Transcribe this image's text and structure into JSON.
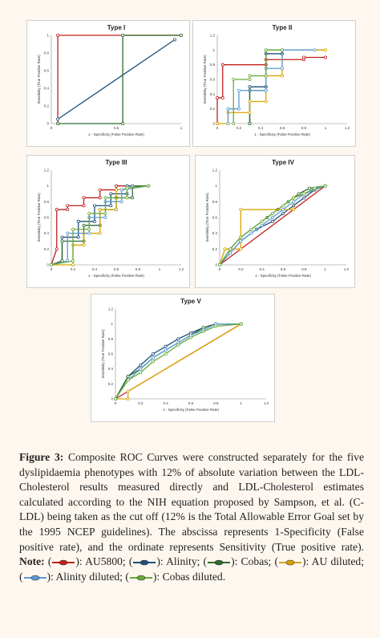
{
  "colors": {
    "AU5800": "#c0201b",
    "Alinity": "#1f4e79",
    "Cobas": "#2e6b2e",
    "AU_diluted": "#d8a400",
    "Alinity_diluted": "#5a9bd5",
    "Cobas_diluted": "#6aaa3a",
    "reference": "#2f5597"
  },
  "chart_data": [
    {
      "type": "line",
      "title": "Type I",
      "xlabel": "1 - Specificity (False Positive Rate)",
      "ylabel": "Sensitivity (True Positive Rate)",
      "xlim": [
        0,
        1
      ],
      "ylim": [
        0,
        1
      ],
      "xticks": [
        "0",
        "0.5",
        "1"
      ],
      "yticks": [
        "0",
        "0.2",
        "0.4",
        "0.6",
        "0.8",
        "1"
      ],
      "series": [
        {
          "key": "AU5800",
          "x": [
            0.05,
            0.05,
            1
          ],
          "y": [
            0,
            1,
            1
          ]
        },
        {
          "key": "Alinity",
          "x": [
            0.05,
            0.95
          ],
          "y": [
            0.05,
            0.95
          ]
        },
        {
          "key": "Cobas",
          "x": [
            0.05,
            0.55,
            0.55,
            1
          ],
          "y": [
            0,
            0,
            1,
            1
          ]
        }
      ]
    },
    {
      "type": "line",
      "title": "Type II",
      "xlabel": "1 - Specificity (False Positive Rate)",
      "ylabel": "Sensitivity (True Positive Rate)",
      "xlim": [
        0,
        1.2
      ],
      "ylim": [
        0,
        1.2
      ],
      "xticks": [
        "0",
        "0.2",
        "0.4",
        "0.6",
        "0.8",
        "1",
        "1.2"
      ],
      "yticks": [
        "0",
        "0.2",
        "0.4",
        "0.6",
        "0.8",
        "1",
        "1.2"
      ],
      "series": [
        {
          "key": "AU5800",
          "x": [
            0,
            0,
            0.05,
            0.05,
            0.45,
            0.45,
            0.8,
            0.8,
            1
          ],
          "y": [
            0,
            0.35,
            0.35,
            0.8,
            0.8,
            0.87,
            0.87,
            0.9,
            0.9
          ]
        },
        {
          "key": "Alinity",
          "x": [
            0.3,
            0.3,
            0.45,
            0.45,
            0.6,
            0.6
          ],
          "y": [
            0,
            0.5,
            0.5,
            0.95,
            0.95,
            1
          ]
        },
        {
          "key": "Cobas",
          "x": [
            0.3,
            0.3,
            0.45,
            0.45,
            0.6
          ],
          "y": [
            0,
            0.45,
            0.45,
            1,
            1
          ]
        },
        {
          "key": "AU_diluted",
          "x": [
            0,
            0.1,
            0.1,
            0.3,
            0.3,
            0.45,
            0.45,
            0.6,
            0.6,
            1
          ],
          "y": [
            0,
            0,
            0.15,
            0.15,
            0.3,
            0.3,
            0.65,
            0.65,
            1,
            1
          ]
        },
        {
          "key": "Alinity_diluted",
          "x": [
            0.1,
            0.1,
            0.2,
            0.2,
            0.45,
            0.45,
            0.6,
            0.6,
            0.9
          ],
          "y": [
            0,
            0.2,
            0.2,
            0.45,
            0.45,
            0.75,
            0.75,
            1,
            1
          ]
        },
        {
          "key": "Cobas_diluted",
          "x": [
            0.15,
            0.15,
            0.3,
            0.3,
            0.45,
            0.45,
            0.6
          ],
          "y": [
            0,
            0.6,
            0.6,
            0.65,
            0.65,
            1,
            1
          ]
        }
      ]
    },
    {
      "type": "line",
      "title": "Type III",
      "xlabel": "1 - Specificity (False Positive Rate)",
      "ylabel": "Sensitivity (True Positive Rate)",
      "xlim": [
        0,
        1.2
      ],
      "ylim": [
        0,
        1.2
      ],
      "xticks": [
        "0",
        "0.2",
        "0.4",
        "0.6",
        "0.8",
        "1",
        "1.2"
      ],
      "yticks": [
        "0",
        "0.2",
        "0.4",
        "0.6",
        "0.8",
        "1",
        "1.2"
      ],
      "series": [
        {
          "key": "AU5800",
          "x": [
            0,
            0.05,
            0.05,
            0.15,
            0.15,
            0.3,
            0.3,
            0.45,
            0.45,
            0.6,
            0.6,
            0.9
          ],
          "y": [
            0,
            0.2,
            0.7,
            0.7,
            0.75,
            0.75,
            0.85,
            0.85,
            0.95,
            0.95,
            1,
            1
          ]
        },
        {
          "key": "Alinity",
          "x": [
            0,
            0.1,
            0.1,
            0.25,
            0.25,
            0.4,
            0.4,
            0.55,
            0.55,
            0.7,
            0.7,
            0.9
          ],
          "y": [
            0,
            0.05,
            0.35,
            0.35,
            0.55,
            0.55,
            0.75,
            0.75,
            0.9,
            0.9,
            1,
            1
          ]
        },
        {
          "key": "Cobas",
          "x": [
            0,
            0.1,
            0.1,
            0.3,
            0.3,
            0.45,
            0.45,
            0.6,
            0.6,
            0.75,
            0.75,
            0.9
          ],
          "y": [
            0,
            0.05,
            0.3,
            0.3,
            0.5,
            0.5,
            0.7,
            0.7,
            0.85,
            0.85,
            1,
            1
          ]
        },
        {
          "key": "AU_diluted",
          "x": [
            0,
            0.2,
            0.2,
            0.3,
            0.3,
            0.45,
            0.45,
            0.6,
            0.6,
            0.9
          ],
          "y": [
            0,
            0,
            0.25,
            0.25,
            0.4,
            0.4,
            0.7,
            0.7,
            0.95,
            1
          ]
        },
        {
          "key": "Alinity_diluted",
          "x": [
            0,
            0.15,
            0.15,
            0.35,
            0.35,
            0.5,
            0.5,
            0.65,
            0.65,
            0.9
          ],
          "y": [
            0,
            0.05,
            0.4,
            0.4,
            0.6,
            0.6,
            0.8,
            0.8,
            0.95,
            1
          ]
        },
        {
          "key": "Cobas_diluted",
          "x": [
            0,
            0.2,
            0.2,
            0.35,
            0.35,
            0.5,
            0.5,
            0.7,
            0.7,
            0.9
          ],
          "y": [
            0,
            0.05,
            0.45,
            0.45,
            0.65,
            0.65,
            0.85,
            0.85,
            0.97,
            1
          ]
        }
      ]
    },
    {
      "type": "line",
      "title": "Type IV",
      "xlabel": "1 - Specificity (False Positive Rate)",
      "ylabel": "Sensitivity (True Positive Rate)",
      "xlim": [
        0,
        1.2
      ],
      "ylim": [
        0,
        1.2
      ],
      "xticks": [
        "0",
        "0.2",
        "0.4",
        "0.6",
        "0.8",
        "1",
        "1.2"
      ],
      "yticks": [
        "0",
        "0.2",
        "0.4",
        "0.6",
        "0.8",
        "1",
        "1.2"
      ],
      "series": [
        {
          "key": "AU5800",
          "x": [
            0,
            1
          ],
          "y": [
            0,
            1
          ]
        },
        {
          "key": "Alinity",
          "x": [
            0,
            0.1,
            0.2,
            0.35,
            0.5,
            0.6,
            0.7,
            0.8,
            0.9,
            1
          ],
          "y": [
            0,
            0.15,
            0.3,
            0.45,
            0.55,
            0.65,
            0.75,
            0.85,
            0.95,
            1
          ]
        },
        {
          "key": "Cobas",
          "x": [
            0,
            0.1,
            0.2,
            0.3,
            0.45,
            0.55,
            0.65,
            0.75,
            0.85,
            1
          ],
          "y": [
            0,
            0.2,
            0.35,
            0.45,
            0.6,
            0.7,
            0.8,
            0.9,
            0.97,
            1
          ]
        },
        {
          "key": "AU_diluted",
          "x": [
            0,
            0.05,
            0.05,
            0.2,
            0.2,
            0.7,
            0.7,
            1
          ],
          "y": [
            0,
            0.2,
            0.2,
            0.2,
            0.7,
            0.7,
            0.85,
            1
          ]
        },
        {
          "key": "Alinity_diluted",
          "x": [
            0,
            0.1,
            0.2,
            0.3,
            0.4,
            0.5,
            0.6,
            0.7,
            0.8,
            1
          ],
          "y": [
            0,
            0.15,
            0.3,
            0.4,
            0.5,
            0.6,
            0.7,
            0.8,
            0.9,
            1
          ]
        },
        {
          "key": "Cobas_diluted",
          "x": [
            0,
            0.1,
            0.2,
            0.3,
            0.4,
            0.5,
            0.6,
            0.7,
            0.8,
            0.9,
            1
          ],
          "y": [
            0,
            0.2,
            0.35,
            0.45,
            0.55,
            0.65,
            0.75,
            0.85,
            0.9,
            0.97,
            1
          ]
        }
      ]
    },
    {
      "type": "line",
      "title": "Type V",
      "xlabel": "1 - Specificity (False Positive Rate)",
      "ylabel": "Sensitivity (True Positive Rate)",
      "xlim": [
        0,
        1.2
      ],
      "ylim": [
        0,
        1.2
      ],
      "xticks": [
        "0",
        "0.2",
        "0.4",
        "0.6",
        "0.8",
        "1",
        "1.2"
      ],
      "yticks": [
        "0",
        "0.2",
        "0.4",
        "0.6",
        "0.8",
        "1",
        "1.2"
      ],
      "series": [
        {
          "key": "AU5800",
          "x": [
            0,
            1
          ],
          "y": [
            0,
            1
          ]
        },
        {
          "key": "Alinity",
          "x": [
            0,
            0.1,
            0.2,
            0.3,
            0.4,
            0.5,
            0.6,
            0.7,
            0.8,
            1
          ],
          "y": [
            0,
            0.3,
            0.45,
            0.6,
            0.7,
            0.8,
            0.88,
            0.95,
            1,
            1
          ]
        },
        {
          "key": "Cobas",
          "x": [
            0,
            0.1,
            0.2,
            0.3,
            0.4,
            0.5,
            0.6,
            0.7,
            0.8,
            1
          ],
          "y": [
            0,
            0.3,
            0.4,
            0.55,
            0.65,
            0.75,
            0.85,
            0.95,
            1,
            1
          ]
        },
        {
          "key": "AU_diluted",
          "x": [
            0,
            0.1,
            0.1,
            1
          ],
          "y": [
            0,
            0,
            0.1,
            1
          ]
        },
        {
          "key": "Alinity_diluted",
          "x": [
            0,
            0.1,
            0.2,
            0.3,
            0.4,
            0.5,
            0.6,
            0.7,
            0.8,
            1
          ],
          "y": [
            0,
            0.25,
            0.4,
            0.55,
            0.65,
            0.75,
            0.85,
            0.92,
            1,
            1
          ]
        },
        {
          "key": "Cobas_diluted",
          "x": [
            0,
            0.1,
            0.2,
            0.3,
            0.4,
            0.5,
            0.6,
            0.7,
            0.8,
            1
          ],
          "y": [
            0,
            0.25,
            0.35,
            0.5,
            0.6,
            0.72,
            0.82,
            0.9,
            0.97,
            1
          ]
        }
      ]
    }
  ],
  "caption": {
    "label": "Figure 3:",
    "text": "Composite ROC Curves were constructed separately for the five dyslipidaemia phenotypes with 12% of absolute variation between the LDL-Cholesterol results measured directly and LDL-Cholesterol estimates calculated according to the NIH equation proposed by Sampson, et al. (C-LDL) being taken as the cut off (12% is the Total Allowable Error Goal set by the 1995 NCEP guidelines). The abscissa represents 1-Specificity (False positive rate), and the ordinate represents Sensitivity (True positive rate).",
    "note_label": "Note:",
    "legend": [
      {
        "key": "AU5800",
        "label": "): AU5800;"
      },
      {
        "key": "Alinity",
        "label": "): Alinity;"
      },
      {
        "key": "Cobas",
        "label": "): Cobas;"
      },
      {
        "key": "AU_diluted",
        "label": "): AU diluted;"
      },
      {
        "key": "Alinity_diluted",
        "label": "): Alinity diluted;"
      },
      {
        "key": "Cobas_diluted",
        "label": "): Cobas diluted."
      }
    ]
  }
}
